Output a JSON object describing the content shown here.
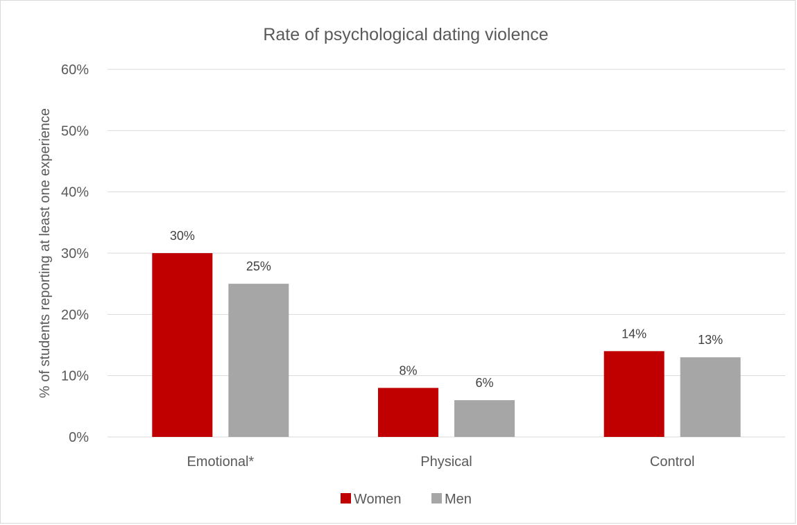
{
  "chart_data": {
    "type": "bar",
    "title": "Rate of psychological dating violence",
    "xlabel": "",
    "ylabel": "% of students reporting at least one experience",
    "categories": [
      "Emotional*",
      "Physical",
      "Control"
    ],
    "series": [
      {
        "name": "Women",
        "values": [
          30,
          8,
          14
        ],
        "color": "#c00000"
      },
      {
        "name": "Men",
        "values": [
          25,
          6,
          13
        ],
        "color": "#a6a6a6"
      }
    ],
    "data_labels": [
      [
        "30%",
        "8%",
        "14%"
      ],
      [
        "25%",
        "6%",
        "13%"
      ]
    ],
    "ylim": [
      0,
      60
    ],
    "yticks": [
      0,
      10,
      20,
      30,
      40,
      50,
      60
    ],
    "ytick_labels": [
      "0%",
      "10%",
      "20%",
      "30%",
      "40%",
      "50%",
      "60%"
    ],
    "grid": true,
    "legend_position": "bottom",
    "gridline_color": "#d9d9d9"
  }
}
